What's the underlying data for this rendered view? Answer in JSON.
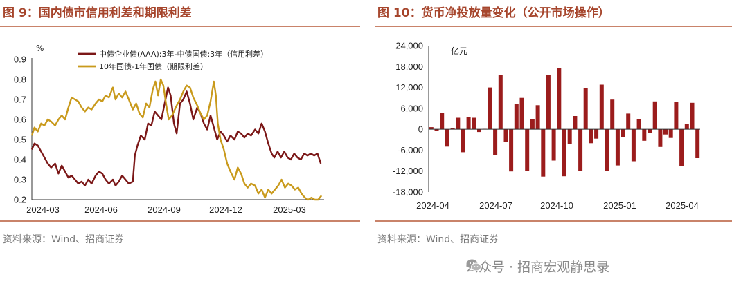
{
  "left": {
    "title": "图 9：国内债市信用利差和期限利差",
    "source": "资料来源：Wind、招商证券"
  },
  "right": {
    "title": "图 10：货币净投放量变化（公开市场操作）",
    "source": "资料来源：Wind、招商证券"
  },
  "watermark": "公众号 · 招商宏观静思录",
  "colors": {
    "credit": "#7b1717",
    "term": "#c99a1c",
    "bar": "#9b1c1c",
    "title": "#a6452c"
  },
  "chart_data": [
    {
      "type": "line",
      "ylabel": "%",
      "ylim": [
        0.2,
        0.9
      ],
      "yticks": [
        "0.2",
        "0.3",
        "0.4",
        "0.5",
        "0.6",
        "0.7",
        "0.8",
        "0.9"
      ],
      "xlabels": [
        "2024-03",
        "2024-06",
        "2024-09",
        "2024-12",
        "2025-03"
      ],
      "x_range": [
        "2024-03-01",
        "2025-05-15"
      ],
      "legend_position": "top",
      "series": [
        {
          "name": "中债企业债(AAA):3年-中债国债:3年（信用利差）",
          "points": [
            [
              "2024-03-01",
              0.45
            ],
            [
              "2024-03-05",
              0.48
            ],
            [
              "2024-03-10",
              0.47
            ],
            [
              "2024-03-15",
              0.44
            ],
            [
              "2024-03-20",
              0.41
            ],
            [
              "2024-03-25",
              0.38
            ],
            [
              "2024-03-30",
              0.36
            ],
            [
              "2024-04-05",
              0.38
            ],
            [
              "2024-04-10",
              0.33
            ],
            [
              "2024-04-15",
              0.37
            ],
            [
              "2024-04-20",
              0.34
            ],
            [
              "2024-04-25",
              0.31
            ],
            [
              "2024-04-30",
              0.32
            ],
            [
              "2024-05-05",
              0.3
            ],
            [
              "2024-05-10",
              0.28
            ],
            [
              "2024-05-15",
              0.29
            ],
            [
              "2024-05-20",
              0.27
            ],
            [
              "2024-05-25",
              0.3
            ],
            [
              "2024-05-30",
              0.28
            ],
            [
              "2024-06-05",
              0.32
            ],
            [
              "2024-06-10",
              0.34
            ],
            [
              "2024-06-15",
              0.33
            ],
            [
              "2024-06-20",
              0.3
            ],
            [
              "2024-06-25",
              0.28
            ],
            [
              "2024-07-01",
              0.3
            ],
            [
              "2024-07-05",
              0.27
            ],
            [
              "2024-07-10",
              0.29
            ],
            [
              "2024-07-15",
              0.32
            ],
            [
              "2024-07-20",
              0.3
            ],
            [
              "2024-07-25",
              0.28
            ],
            [
              "2024-07-31",
              0.29
            ],
            [
              "2024-08-03",
              0.42
            ],
            [
              "2024-08-07",
              0.47
            ],
            [
              "2024-08-12",
              0.52
            ],
            [
              "2024-08-18",
              0.5
            ],
            [
              "2024-08-23",
              0.58
            ],
            [
              "2024-08-28",
              0.57
            ],
            [
              "2024-09-02",
              0.64
            ],
            [
              "2024-09-07",
              0.62
            ],
            [
              "2024-09-12",
              0.6
            ],
            [
              "2024-09-17",
              0.68
            ],
            [
              "2024-09-22",
              0.76
            ],
            [
              "2024-09-26",
              0.72
            ],
            [
              "2024-10-01",
              0.58
            ],
            [
              "2024-10-05",
              0.53
            ],
            [
              "2024-10-10",
              0.68
            ],
            [
              "2024-10-15",
              0.7
            ],
            [
              "2024-10-20",
              0.74
            ],
            [
              "2024-10-25",
              0.68
            ],
            [
              "2024-10-30",
              0.6
            ],
            [
              "2024-11-05",
              0.66
            ],
            [
              "2024-11-10",
              0.63
            ],
            [
              "2024-11-15",
              0.58
            ],
            [
              "2024-11-20",
              0.55
            ],
            [
              "2024-11-25",
              0.62
            ],
            [
              "2024-11-30",
              0.56
            ],
            [
              "2024-12-05",
              0.5
            ],
            [
              "2024-12-10",
              0.54
            ],
            [
              "2024-12-15",
              0.52
            ],
            [
              "2024-12-20",
              0.49
            ],
            [
              "2024-12-25",
              0.52
            ],
            [
              "2024-12-31",
              0.5
            ],
            [
              "2025-01-05",
              0.54
            ],
            [
              "2025-01-10",
              0.53
            ],
            [
              "2025-01-15",
              0.51
            ],
            [
              "2025-01-20",
              0.53
            ],
            [
              "2025-01-25",
              0.52
            ],
            [
              "2025-01-31",
              0.55
            ],
            [
              "2025-02-05",
              0.53
            ],
            [
              "2025-02-10",
              0.58
            ],
            [
              "2025-02-15",
              0.54
            ],
            [
              "2025-02-20",
              0.48
            ],
            [
              "2025-02-25",
              0.43
            ],
            [
              "2025-03-01",
              0.41
            ],
            [
              "2025-03-06",
              0.44
            ],
            [
              "2025-03-11",
              0.41
            ],
            [
              "2025-03-16",
              0.44
            ],
            [
              "2025-03-21",
              0.41
            ],
            [
              "2025-03-26",
              0.4
            ],
            [
              "2025-03-31",
              0.43
            ],
            [
              "2025-04-05",
              0.41
            ],
            [
              "2025-04-10",
              0.4
            ],
            [
              "2025-04-15",
              0.43
            ],
            [
              "2025-04-20",
              0.42
            ],
            [
              "2025-04-25",
              0.43
            ],
            [
              "2025-04-30",
              0.42
            ],
            [
              "2025-05-05",
              0.43
            ],
            [
              "2025-05-10",
              0.38
            ]
          ]
        },
        {
          "name": "10年国债-1年国债（期限利差）",
          "points": [
            [
              "2024-03-01",
              0.52
            ],
            [
              "2024-03-05",
              0.56
            ],
            [
              "2024-03-10",
              0.54
            ],
            [
              "2024-03-15",
              0.58
            ],
            [
              "2024-03-20",
              0.57
            ],
            [
              "2024-03-25",
              0.6
            ],
            [
              "2024-03-30",
              0.59
            ],
            [
              "2024-04-05",
              0.57
            ],
            [
              "2024-04-10",
              0.6
            ],
            [
              "2024-04-15",
              0.62
            ],
            [
              "2024-04-20",
              0.6
            ],
            [
              "2024-04-25",
              0.66
            ],
            [
              "2024-04-30",
              0.71
            ],
            [
              "2024-05-05",
              0.7
            ],
            [
              "2024-05-10",
              0.69
            ],
            [
              "2024-05-15",
              0.66
            ],
            [
              "2024-05-20",
              0.64
            ],
            [
              "2024-05-25",
              0.66
            ],
            [
              "2024-05-30",
              0.65
            ],
            [
              "2024-06-05",
              0.68
            ],
            [
              "2024-06-10",
              0.7
            ],
            [
              "2024-06-15",
              0.69
            ],
            [
              "2024-06-20",
              0.72
            ],
            [
              "2024-06-25",
              0.71
            ],
            [
              "2024-07-01",
              0.76
            ],
            [
              "2024-07-05",
              0.7
            ],
            [
              "2024-07-10",
              0.73
            ],
            [
              "2024-07-15",
              0.71
            ],
            [
              "2024-07-20",
              0.74
            ],
            [
              "2024-07-25",
              0.7
            ],
            [
              "2024-07-31",
              0.65
            ],
            [
              "2024-08-05",
              0.68
            ],
            [
              "2024-08-10",
              0.63
            ],
            [
              "2024-08-15",
              0.61
            ],
            [
              "2024-08-20",
              0.68
            ],
            [
              "2024-08-25",
              0.66
            ],
            [
              "2024-08-30",
              0.75
            ],
            [
              "2024-09-03",
              0.79
            ],
            [
              "2024-09-07",
              0.72
            ],
            [
              "2024-09-11",
              0.8
            ],
            [
              "2024-09-15",
              0.77
            ],
            [
              "2024-09-19",
              0.68
            ],
            [
              "2024-09-23",
              0.6
            ],
            [
              "2024-09-28",
              0.62
            ],
            [
              "2024-10-05",
              0.67
            ],
            [
              "2024-10-10",
              0.7
            ],
            [
              "2024-10-15",
              0.74
            ],
            [
              "2024-10-20",
              0.77
            ],
            [
              "2024-10-25",
              0.76
            ],
            [
              "2024-10-30",
              0.71
            ],
            [
              "2024-11-05",
              0.67
            ],
            [
              "2024-11-10",
              0.63
            ],
            [
              "2024-11-15",
              0.6
            ],
            [
              "2024-11-20",
              0.62
            ],
            [
              "2024-11-25",
              0.69
            ],
            [
              "2024-11-30",
              0.79
            ],
            [
              "2024-12-03",
              0.72
            ],
            [
              "2024-12-06",
              0.58
            ],
            [
              "2024-12-10",
              0.5
            ],
            [
              "2024-12-15",
              0.45
            ],
            [
              "2024-12-20",
              0.38
            ],
            [
              "2024-12-25",
              0.34
            ],
            [
              "2024-12-31",
              0.3
            ],
            [
              "2025-01-05",
              0.36
            ],
            [
              "2025-01-10",
              0.33
            ],
            [
              "2025-01-15",
              0.28
            ],
            [
              "2025-01-20",
              0.26
            ],
            [
              "2025-01-25",
              0.28
            ],
            [
              "2025-01-31",
              0.27
            ],
            [
              "2025-02-05",
              0.23
            ],
            [
              "2025-02-10",
              0.25
            ],
            [
              "2025-02-15",
              0.21
            ],
            [
              "2025-02-20",
              0.25
            ],
            [
              "2025-02-25",
              0.23
            ],
            [
              "2025-03-02",
              0.25
            ],
            [
              "2025-03-07",
              0.27
            ],
            [
              "2025-03-12",
              0.3
            ],
            [
              "2025-03-17",
              0.26
            ],
            [
              "2025-03-22",
              0.28
            ],
            [
              "2025-03-27",
              0.27
            ],
            [
              "2025-04-01",
              0.25
            ],
            [
              "2025-04-06",
              0.26
            ],
            [
              "2025-04-11",
              0.23
            ],
            [
              "2025-04-16",
              0.21
            ],
            [
              "2025-04-21",
              0.2
            ],
            [
              "2025-04-26",
              0.21
            ],
            [
              "2025-05-01",
              0.2
            ],
            [
              "2025-05-06",
              0.2
            ],
            [
              "2025-05-11",
              0.22
            ]
          ]
        }
      ]
    },
    {
      "type": "bar",
      "ylabel": "亿元",
      "ylim": [
        -18000,
        24000
      ],
      "yticks": [
        "24,000",
        "18,000",
        "12,000",
        "6,000",
        "0",
        "-6,000",
        "-12,000",
        "-18,000"
      ],
      "xlabels": [
        "2024-04",
        "2024-07",
        "2024-10",
        "2025-01",
        "2025-04"
      ],
      "values": [
        600,
        -500,
        4600,
        -5000,
        400,
        3300,
        -6600,
        3600,
        3300,
        -800,
        100,
        12000,
        -7500,
        15600,
        -3700,
        -12100,
        7200,
        9000,
        -12000,
        3000,
        6900,
        -13600,
        15500,
        -9000,
        17500,
        -13500,
        -4300,
        3800,
        -12000,
        11900,
        -4000,
        -2700,
        12800,
        -12000,
        8500,
        -10400,
        -2200,
        4500,
        -9200,
        3000,
        -3300,
        -1000,
        8000,
        -5100,
        -1500,
        -2500,
        7900,
        -10500,
        1600,
        7600,
        -8300
      ]
    }
  ]
}
